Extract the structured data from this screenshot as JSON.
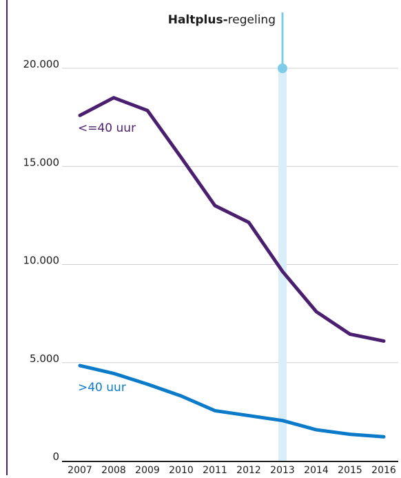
{
  "chart_data": {
    "type": "line",
    "x": [
      "2007",
      "2008",
      "2009",
      "2010",
      "2011",
      "2012",
      "2013",
      "2014",
      "2015",
      "2016"
    ],
    "ylim": [
      0,
      22500
    ],
    "y_ticks": [
      {
        "value": 0,
        "label": "0"
      },
      {
        "value": 5000,
        "label": "5.000"
      },
      {
        "value": 10000,
        "label": "10.000"
      },
      {
        "value": 15000,
        "label": "15.000"
      },
      {
        "value": 20000,
        "label": "20.000"
      }
    ],
    "grid": true,
    "series": [
      {
        "name": "<=40 uur",
        "color": "#4b1f6f",
        "values": [
          17600,
          18500,
          17850,
          15450,
          13000,
          12150,
          9650,
          7600,
          6450,
          6100
        ]
      },
      {
        "name": ">40 uur",
        "color": "#0b7ac8",
        "values": [
          4850,
          4450,
          3900,
          3300,
          2550,
          2300,
          2050,
          1580,
          1350,
          1220
        ]
      }
    ],
    "annotation": {
      "bold": "Haltplus-",
      "text": "regeling",
      "x": "2013",
      "y": 20000,
      "color": "#7ecde8",
      "band_color": "#d8eef8"
    }
  }
}
